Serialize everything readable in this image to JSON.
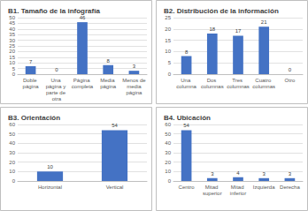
{
  "chart_data": [
    {
      "type": "bar",
      "title": "B1. Tamaño de la infografía",
      "categories": [
        "Doble página",
        "Una página y parte de otra",
        "Página completa",
        "Media página",
        "Menos de media página"
      ],
      "values": [
        7,
        0,
        46,
        8,
        3
      ],
      "color": "#4472c4",
      "ylim": [
        0,
        50
      ],
      "yticks": [
        0,
        5,
        10,
        15,
        20,
        25,
        30,
        35,
        40,
        45,
        50
      ],
      "grid": true,
      "data_labels": true
    },
    {
      "type": "bar",
      "title": "B2. Distribución de la información",
      "categories": [
        "Una columna",
        "Dos columnas",
        "Tres columnas",
        "Cuatro columnas",
        "Otro"
      ],
      "values": [
        8,
        18,
        17,
        21,
        0
      ],
      "color": "#4472c4",
      "ylim": [
        0,
        25
      ],
      "yticks": [
        0,
        5,
        10,
        15,
        20,
        25
      ],
      "grid": true,
      "data_labels": true
    },
    {
      "type": "bar",
      "title": "B3. Orientación",
      "categories": [
        "Horizontal",
        "Vertical"
      ],
      "values": [
        10,
        54
      ],
      "color": "#4472c4",
      "ylim": [
        0,
        60
      ],
      "yticks": [
        0,
        10,
        20,
        30,
        40,
        50,
        60
      ],
      "grid": true,
      "data_labels": true
    },
    {
      "type": "bar",
      "title": "B4. Ubicación",
      "categories": [
        "Centro",
        "Mitad superior",
        "Mitad inferior",
        "Izquierda",
        "Derecha"
      ],
      "values": [
        54,
        3,
        4,
        3,
        3
      ],
      "color": "#4472c4",
      "ylim": [
        0,
        60
      ],
      "yticks": [
        0,
        10,
        20,
        30,
        40,
        50,
        60
      ],
      "grid": true,
      "data_labels": true
    }
  ]
}
